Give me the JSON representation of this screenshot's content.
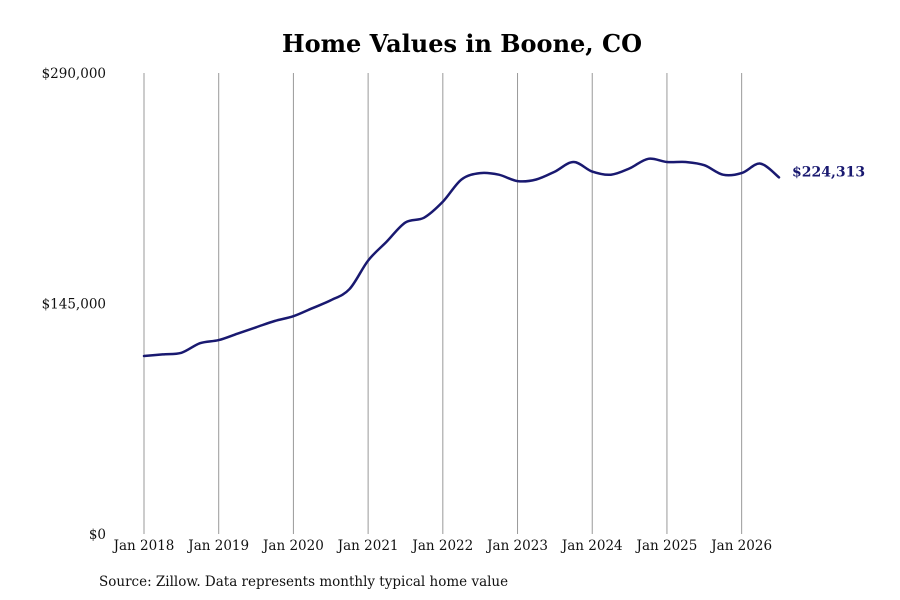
{
  "chart_data": {
    "type": "line",
    "title": "Home Values in Boone, CO",
    "xlabel": "",
    "ylabel": "",
    "ylim": [
      0,
      290000
    ],
    "xlim": [
      "Jan 2018",
      "Oct 2026"
    ],
    "yticks": [
      {
        "value": 0,
        "label": "$0"
      },
      {
        "value": 145000,
        "label": "$145,000"
      },
      {
        "value": 290000,
        "label": "$290,000"
      }
    ],
    "xticks": [
      {
        "value": "2018-01",
        "label": "Jan 2018"
      },
      {
        "value": "2019-01",
        "label": "Jan 2019"
      },
      {
        "value": "2020-01",
        "label": "Jan 2020"
      },
      {
        "value": "2021-01",
        "label": "Jan 2021"
      },
      {
        "value": "2022-01",
        "label": "Jan 2022"
      },
      {
        "value": "2023-01",
        "label": "Jan 2023"
      },
      {
        "value": "2024-01",
        "label": "Jan 2024"
      },
      {
        "value": "2025-01",
        "label": "Jan 2025"
      },
      {
        "value": "2026-01",
        "label": "Jan 2026"
      }
    ],
    "grid": "vertical",
    "legend": "none",
    "line_color": "#191970",
    "end_label": "$224,313",
    "series": [
      {
        "x": [
          "2018-01",
          "2018-04",
          "2018-07",
          "2018-10",
          "2019-01",
          "2019-04",
          "2019-07",
          "2019-10",
          "2020-01",
          "2020-04",
          "2020-07",
          "2020-10",
          "2021-01",
          "2021-04",
          "2021-07",
          "2021-10",
          "2022-01",
          "2022-04",
          "2022-07",
          "2022-10",
          "2023-01",
          "2023-04",
          "2023-07",
          "2023-10",
          "2024-01",
          "2024-04",
          "2024-07",
          "2024-10",
          "2025-01",
          "2025-04",
          "2025-07",
          "2025-10",
          "2026-01",
          "2026-04",
          "2026-07"
        ],
        "values": [
          112000,
          113000,
          114000,
          120000,
          122000,
          126000,
          130000,
          134000,
          137000,
          142000,
          147000,
          154000,
          172000,
          184000,
          196000,
          199000,
          209000,
          223000,
          227000,
          226000,
          222000,
          223000,
          228000,
          234000,
          228000,
          226000,
          230000,
          236000,
          234000,
          234000,
          232000,
          226000,
          227000,
          233000,
          224313
        ]
      }
    ]
  },
  "source_note": "Source: Zillow. Data represents monthly typical home value"
}
